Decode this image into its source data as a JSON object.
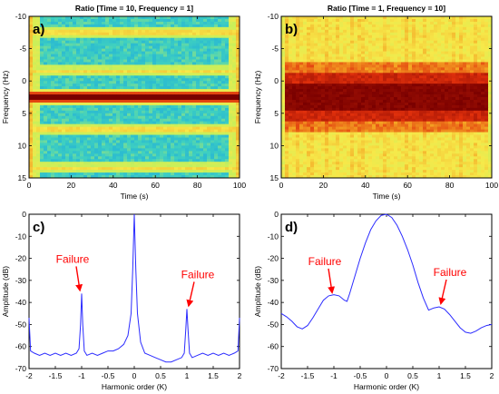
{
  "colors": {
    "line": "#2b2bff",
    "annotation": "#ff0000",
    "axis": "#000000",
    "spec_low": "#12b6e8",
    "spec_mid": "#f6e94a",
    "spec_high": "#f08a12",
    "spec_peak": "#8a0000"
  },
  "chart_data": [
    {
      "panel": "a)",
      "type": "heatmap",
      "title": "Ratio [Time = 10, Frequency = 1]",
      "xlabel": "Time (s)",
      "ylabel": "Frequency (Hz)",
      "xlim": [
        0,
        100
      ],
      "ylim": [
        -10,
        15
      ],
      "y_inverted": true,
      "xticks": [
        "0",
        "20",
        "40",
        "60",
        "80",
        "100"
      ],
      "yticks": [
        "-10",
        "-5",
        "0",
        "5",
        "10",
        "15"
      ],
      "colormap": "jet",
      "bands": [
        {
          "frequency": -7.5,
          "level": "medium"
        },
        {
          "frequency": -1.5,
          "level": "medium"
        },
        {
          "frequency": 2.5,
          "level": "peak"
        },
        {
          "frequency": 7.5,
          "level": "medium"
        },
        {
          "frequency": 13.5,
          "level": "medium"
        }
      ]
    },
    {
      "panel": "b)",
      "type": "heatmap",
      "title": "Ratio [Time = 1, Frequency = 10]",
      "xlabel": "Time (s)",
      "ylabel": "Frequency (Hz)",
      "xlim": [
        0,
        100
      ],
      "ylim": [
        -10,
        15
      ],
      "y_inverted": true,
      "xticks": [
        "0",
        "20",
        "40",
        "60",
        "80",
        "100"
      ],
      "yticks": [
        "-10",
        "-5",
        "0",
        "5",
        "10",
        "15"
      ],
      "colormap": "jet",
      "band_center": 2.5,
      "band_halfwidth": 5
    },
    {
      "panel": "c)",
      "type": "line",
      "title": "",
      "xlabel": "Harmonic order (K)",
      "ylabel": "Amplitude (dB)",
      "xlim": [
        -2,
        2
      ],
      "ylim": [
        -70,
        0
      ],
      "xticks": [
        "-2",
        "-1.5",
        "-1",
        "-0.5",
        "0",
        "0.5",
        "1",
        "1.5",
        "2"
      ],
      "yticks": [
        "0",
        "-10",
        "-20",
        "-30",
        "-40",
        "-50",
        "-60",
        "-70"
      ],
      "series": [
        {
          "points": [
            [
              -2.0,
              -47
            ],
            [
              -1.97,
              -62
            ],
            [
              -1.9,
              -63
            ],
            [
              -1.8,
              -64
            ],
            [
              -1.7,
              -63
            ],
            [
              -1.6,
              -64
            ],
            [
              -1.5,
              -63
            ],
            [
              -1.4,
              -64
            ],
            [
              -1.3,
              -63
            ],
            [
              -1.2,
              -64
            ],
            [
              -1.1,
              -63
            ],
            [
              -1.05,
              -61
            ],
            [
              -1.02,
              -50
            ],
            [
              -1.0,
              -36
            ],
            [
              -0.98,
              -50
            ],
            [
              -0.95,
              -62
            ],
            [
              -0.9,
              -64
            ],
            [
              -0.8,
              -63
            ],
            [
              -0.7,
              -64
            ],
            [
              -0.6,
              -63
            ],
            [
              -0.5,
              -62
            ],
            [
              -0.4,
              -62
            ],
            [
              -0.3,
              -61
            ],
            [
              -0.2,
              -59
            ],
            [
              -0.12,
              -55
            ],
            [
              -0.06,
              -45
            ],
            [
              -0.03,
              -25
            ],
            [
              0.0,
              0
            ],
            [
              0.03,
              -25
            ],
            [
              0.06,
              -45
            ],
            [
              0.12,
              -58
            ],
            [
              0.2,
              -63
            ],
            [
              0.3,
              -64
            ],
            [
              0.4,
              -65
            ],
            [
              0.5,
              -66
            ],
            [
              0.6,
              -67
            ],
            [
              0.7,
              -67
            ],
            [
              0.8,
              -66
            ],
            [
              0.9,
              -65
            ],
            [
              0.95,
              -63
            ],
            [
              0.98,
              -52
            ],
            [
              1.0,
              -43
            ],
            [
              1.02,
              -52
            ],
            [
              1.05,
              -63
            ],
            [
              1.1,
              -65
            ],
            [
              1.2,
              -64
            ],
            [
              1.3,
              -63
            ],
            [
              1.4,
              -64
            ],
            [
              1.5,
              -63
            ],
            [
              1.6,
              -64
            ],
            [
              1.7,
              -63
            ],
            [
              1.8,
              -64
            ],
            [
              1.9,
              -63
            ],
            [
              1.97,
              -62
            ],
            [
              2.0,
              -47
            ]
          ]
        }
      ],
      "annotations": [
        {
          "text": "Failure",
          "target": [
            -1.0,
            -36
          ]
        },
        {
          "text": "Failure",
          "target": [
            1.0,
            -43
          ]
        }
      ]
    },
    {
      "panel": "d)",
      "type": "line",
      "title": "",
      "xlabel": "Harmonic order (K)",
      "ylabel": "Amplitude (dB)",
      "xlim": [
        -2,
        2
      ],
      "ylim": [
        -70,
        0
      ],
      "xticks": [
        "-2",
        "-1.5",
        "-1",
        "-0.5",
        "0",
        "0.5",
        "1",
        "1.5",
        "2"
      ],
      "yticks": [
        "0",
        "-10",
        "-20",
        "-30",
        "-40",
        "-50",
        "-60",
        "-70"
      ],
      "series": [
        {
          "points": [
            [
              -2.0,
              -45
            ],
            [
              -1.9,
              -46.5
            ],
            [
              -1.8,
              -48.5
            ],
            [
              -1.7,
              -51
            ],
            [
              -1.6,
              -52
            ],
            [
              -1.5,
              -50.5
            ],
            [
              -1.4,
              -47
            ],
            [
              -1.3,
              -43
            ],
            [
              -1.2,
              -39
            ],
            [
              -1.1,
              -37
            ],
            [
              -1.0,
              -36.5
            ],
            [
              -0.9,
              -37
            ],
            [
              -0.8,
              -39
            ],
            [
              -0.75,
              -39.5
            ],
            [
              -0.7,
              -36
            ],
            [
              -0.6,
              -28
            ],
            [
              -0.5,
              -20
            ],
            [
              -0.4,
              -13
            ],
            [
              -0.3,
              -7
            ],
            [
              -0.2,
              -3
            ],
            [
              -0.1,
              -0.5
            ],
            [
              0.0,
              0
            ],
            [
              0.1,
              -1.5
            ],
            [
              0.2,
              -5
            ],
            [
              0.3,
              -10
            ],
            [
              0.4,
              -16
            ],
            [
              0.5,
              -23
            ],
            [
              0.6,
              -31
            ],
            [
              0.7,
              -38
            ],
            [
              0.8,
              -43.5
            ],
            [
              0.9,
              -42.5
            ],
            [
              1.0,
              -42
            ],
            [
              1.1,
              -43
            ],
            [
              1.2,
              -45.5
            ],
            [
              1.3,
              -48.5
            ],
            [
              1.4,
              -51.5
            ],
            [
              1.5,
              -53.5
            ],
            [
              1.6,
              -54
            ],
            [
              1.7,
              -53
            ],
            [
              1.8,
              -51.5
            ],
            [
              1.9,
              -50.5
            ],
            [
              2.0,
              -50
            ]
          ]
        }
      ],
      "annotations": [
        {
          "text": "Failure",
          "target": [
            -1.0,
            -37
          ]
        },
        {
          "text": "Failure",
          "target": [
            1.0,
            -42
          ]
        }
      ]
    }
  ]
}
